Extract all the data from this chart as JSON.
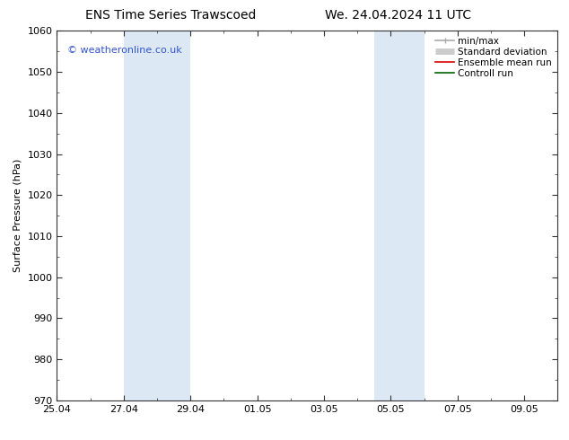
{
  "title_left": "ENS Time Series Trawscoed",
  "title_right": "We. 24.04.2024 11 UTC",
  "ylabel": "Surface Pressure (hPa)",
  "ylim": [
    970,
    1060
  ],
  "yticks": [
    970,
    980,
    990,
    1000,
    1010,
    1020,
    1030,
    1040,
    1050,
    1060
  ],
  "xtick_labels": [
    "25.04",
    "27.04",
    "29.04",
    "01.05",
    "03.05",
    "05.05",
    "07.05",
    "09.05"
  ],
  "xtick_positions": [
    0,
    2,
    4,
    6,
    8,
    10,
    12,
    14
  ],
  "xlim": [
    0,
    15
  ],
  "shaded_bands": [
    {
      "x_start": 2,
      "x_end": 4,
      "color": "#dce9f5"
    },
    {
      "x_start": 9.5,
      "x_end": 11,
      "color": "#dce9f5"
    }
  ],
  "watermark_text": "© weatheronline.co.uk",
  "watermark_color": "#3355cc",
  "legend_entries": [
    {
      "label": "min/max",
      "color": "#aaaaaa",
      "lw": 1.2,
      "type": "line_with_caps"
    },
    {
      "label": "Standard deviation",
      "color": "#cccccc",
      "lw": 5,
      "type": "thick_line"
    },
    {
      "label": "Ensemble mean run",
      "color": "#dd0000",
      "lw": 1.2,
      "type": "line"
    },
    {
      "label": "Controll run",
      "color": "#006600",
      "lw": 1.2,
      "type": "line"
    }
  ],
  "bg_color": "#ffffff",
  "tick_color": "#333333",
  "font_size": 8,
  "title_font_size": 10
}
